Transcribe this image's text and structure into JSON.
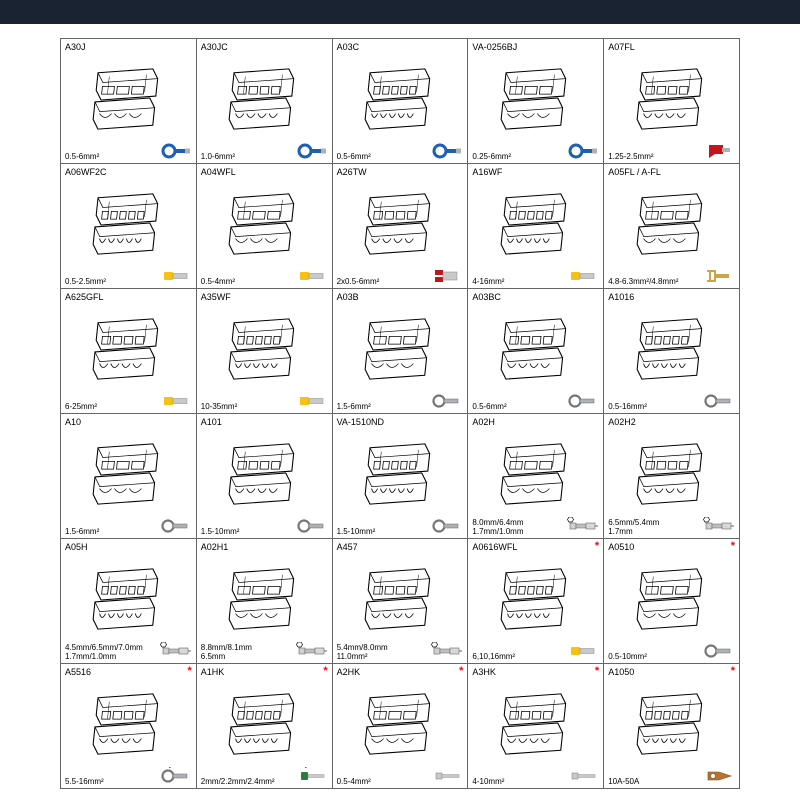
{
  "layout": {
    "cols": 5,
    "rows": 6,
    "header_bar_color": "#1a2332",
    "border_color": "#666666",
    "bg": "#ffffff"
  },
  "fonts": {
    "label": 9,
    "spec": 8,
    "family": "Arial"
  },
  "icon_colors": {
    "blue": "#1e5fb3",
    "yellow": "#f5c211",
    "red": "#c4151c",
    "gold": "#c9a648",
    "silver": "#9aa0a6",
    "green": "#2d7a3e",
    "copper": "#b87333"
  },
  "cells": [
    {
      "code": "A30J",
      "spec": "0.5-6mm²",
      "icon": "ring",
      "icon_color": "blue"
    },
    {
      "code": "A30JC",
      "spec": "1.0-6mm²",
      "icon": "ring",
      "icon_color": "blue"
    },
    {
      "code": "A03C",
      "spec": "0.5-6mm²",
      "icon": "ring",
      "icon_color": "blue"
    },
    {
      "code": "VA-0256BJ",
      "spec": "0.25-6mm²",
      "icon": "ring",
      "icon_color": "blue"
    },
    {
      "code": "A07FL",
      "spec": "1.25-2.5mm²",
      "icon": "flag",
      "icon_color": "red"
    },
    {
      "code": "A06WF2C",
      "spec": "0.5-2.5mm²",
      "icon": "ferrule",
      "icon_color": "yellow"
    },
    {
      "code": "A04WFL",
      "spec": "0.5-4mm²",
      "icon": "ferrule",
      "icon_color": "yellow"
    },
    {
      "code": "A26TW",
      "spec": "2x0.5-6mm²",
      "icon": "twin",
      "icon_color": "red"
    },
    {
      "code": "A16WF",
      "spec": "4-16mm²",
      "icon": "ferrule",
      "icon_color": "yellow"
    },
    {
      "code": "A05FL / A-FL",
      "spec": "4.8-6.3mm²/4.8mm²",
      "icon": "spade",
      "icon_color": "gold"
    },
    {
      "code": "A625GFL",
      "spec": "6-25mm²",
      "icon": "ferrule",
      "icon_color": "yellow"
    },
    {
      "code": "A35WF",
      "spec": "10-35mm²",
      "icon": "ferrule",
      "icon_color": "yellow"
    },
    {
      "code": "A03B",
      "spec": "1.5-6mm²",
      "icon": "ring-o",
      "icon_color": "silver"
    },
    {
      "code": "A03BC",
      "spec": "0.5-6mm²",
      "icon": "ring-o",
      "icon_color": "silver"
    },
    {
      "code": "A1016",
      "spec": "0.5-16mm²",
      "icon": "ring-o",
      "icon_color": "silver"
    },
    {
      "code": "A10",
      "spec": "1.5-6mm²",
      "icon": "ring-o",
      "icon_color": "silver"
    },
    {
      "code": "A101",
      "spec": "1.5-10mm²",
      "icon": "ring-o",
      "icon_color": "silver"
    },
    {
      "code": "VA-1510ND",
      "spec": "1.5-10mm²",
      "icon": "ring-o",
      "icon_color": "silver"
    },
    {
      "code": "A02H",
      "spec": "8.0mm/6.4mm\n1.7mm/1.0mm",
      "icon": "coax",
      "icon_color": "silver",
      "hex": true
    },
    {
      "code": "A02H2",
      "spec": "6.5mm/5.4mm\n1.7mm",
      "icon": "coax",
      "icon_color": "silver",
      "hex": true
    },
    {
      "code": "A05H",
      "spec": "4.5mm/6.5mm/7.0mm\n1.7mm/1.0mm",
      "icon": "coax",
      "icon_color": "silver",
      "hex": true
    },
    {
      "code": "A02H1",
      "spec": "8.8mm/8.1mm\n6.5mm",
      "icon": "coax",
      "icon_color": "silver",
      "hex": true
    },
    {
      "code": "A457",
      "spec": "5.4mm/8.0mm\n11.0mm²",
      "icon": "coax",
      "icon_color": "silver",
      "hex": true
    },
    {
      "code": "A0616WFL",
      "spec": "6,10,16mm²",
      "icon": "ferrule",
      "icon_color": "yellow",
      "star": true
    },
    {
      "code": "A0510",
      "spec": "0.5-10mm²",
      "icon": "ring-o",
      "icon_color": "silver",
      "star": true
    },
    {
      "code": "A5516",
      "spec": "5.5-16mm²",
      "icon": "ring-o",
      "icon_color": "silver",
      "star": true,
      "diamond": true
    },
    {
      "code": "A1HK",
      "spec": "2mm/2.2mm/2.4mm²",
      "icon": "pin",
      "icon_color": "green",
      "star": true,
      "diamond": true
    },
    {
      "code": "A2HK",
      "spec": "0.5-4mm²",
      "icon": "pin-s",
      "icon_color": "silver",
      "star": true
    },
    {
      "code": "A3HK",
      "spec": "4-10mm²",
      "icon": "pin-s",
      "icon_color": "silver",
      "star": true
    },
    {
      "code": "A1050",
      "spec": "10A-50A",
      "icon": "lug",
      "icon_color": "copper",
      "star": true
    }
  ]
}
